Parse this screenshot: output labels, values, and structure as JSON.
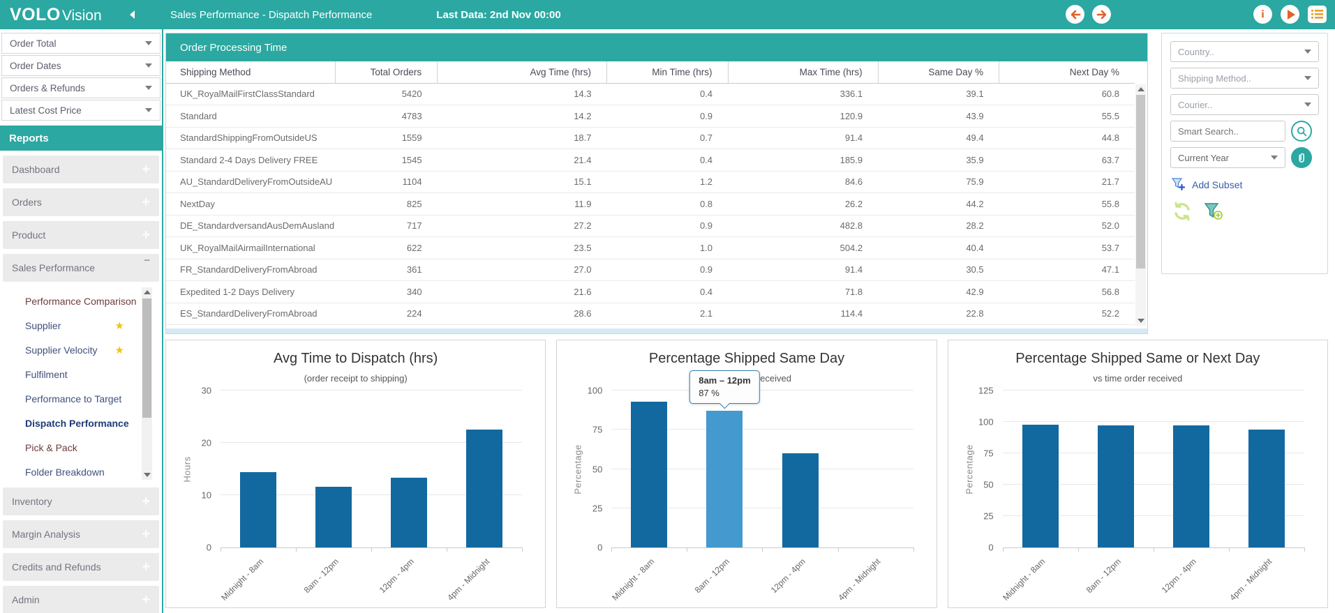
{
  "header": {
    "logo_bold": "VOLO",
    "logo_light": "Vision",
    "title": "Sales Performance - Dispatch Performance",
    "last_data": "Last Data: 2nd Nov 00:00"
  },
  "colors": {
    "accent_teal": "#2aa8a1",
    "accent_orange": "#e2622b",
    "bar_blue": "#1269a0",
    "bar_hover_blue": "#4499ce",
    "panel_border_blue": "#bbd8e8"
  },
  "sidebar": {
    "reports_header": "Reports",
    "filters": [
      {
        "label": "Order Total"
      },
      {
        "label": "Order Dates"
      },
      {
        "label": "Orders & Refunds"
      },
      {
        "label": "Latest Cost Price"
      }
    ],
    "sections": [
      {
        "label": "Dashboard",
        "state": "+"
      },
      {
        "label": "Orders",
        "state": "+"
      },
      {
        "label": "Product",
        "state": "+"
      },
      {
        "label": "Sales Performance",
        "state": "−",
        "expanded": true
      },
      {
        "label": "Inventory",
        "state": "+"
      },
      {
        "label": "Margin Analysis",
        "state": "+"
      },
      {
        "label": "Credits and Refunds",
        "state": "+"
      },
      {
        "label": "Admin",
        "state": "+"
      }
    ],
    "submenu": [
      {
        "label": "Performance Comparison",
        "visited": true
      },
      {
        "label": "Supplier",
        "star": true
      },
      {
        "label": "Supplier Velocity",
        "star": true
      },
      {
        "label": "Fulfilment"
      },
      {
        "label": "Performance to Target"
      },
      {
        "label": "Dispatch Performance",
        "active": true
      },
      {
        "label": "Pick & Pack",
        "visited": true
      },
      {
        "label": "Folder Breakdown"
      }
    ]
  },
  "table": {
    "title": "Order Processing Time",
    "columns": [
      "Shipping Method",
      "Total Orders",
      "Avg Time (hrs)",
      "Min Time (hrs)",
      "Max Time (hrs)",
      "Same Day %",
      "Next Day %"
    ],
    "rows": [
      [
        "UK_RoyalMailFirstClassStandard",
        "5420",
        "14.3",
        "0.4",
        "336.1",
        "39.1",
        "60.8"
      ],
      [
        "Standard",
        "4783",
        "14.2",
        "0.9",
        "120.9",
        "43.9",
        "55.5"
      ],
      [
        "StandardShippingFromOutsideUS",
        "1559",
        "18.7",
        "0.7",
        "91.4",
        "49.4",
        "44.8"
      ],
      [
        "Standard 2-4 Days Delivery FREE",
        "1545",
        "21.4",
        "0.4",
        "185.9",
        "35.9",
        "63.7"
      ],
      [
        "AU_StandardDeliveryFromOutsideAU",
        "1104",
        "15.1",
        "1.2",
        "84.6",
        "75.9",
        "21.7"
      ],
      [
        "NextDay",
        "825",
        "11.9",
        "0.8",
        "26.2",
        "44.2",
        "55.8"
      ],
      [
        "DE_StandardversandAusDemAusland",
        "717",
        "27.2",
        "0.9",
        "482.8",
        "28.2",
        "52.0"
      ],
      [
        "UK_RoyalMailAirmailInternational",
        "622",
        "23.5",
        "1.0",
        "504.2",
        "40.4",
        "53.7"
      ],
      [
        "FR_StandardDeliveryFromAbroad",
        "361",
        "27.0",
        "0.9",
        "91.4",
        "30.5",
        "47.1"
      ],
      [
        "Expedited 1-2 Days Delivery",
        "340",
        "21.6",
        "0.4",
        "71.8",
        "42.9",
        "56.8"
      ],
      [
        "ES_StandardDeliveryFromAbroad",
        "224",
        "28.6",
        "2.1",
        "114.4",
        "22.8",
        "52.2"
      ]
    ]
  },
  "filter_panel": {
    "dropdowns": [
      "Country..",
      "Shipping Method..",
      "Courier.."
    ],
    "search_placeholder": "Smart Search..",
    "period_dropdown": "Current Year",
    "add_subset_label": "Add Subset"
  },
  "chart_data": [
    {
      "type": "bar",
      "title": "Avg Time to Dispatch (hrs)",
      "subtitle": "(order receipt to shipping)",
      "ylabel": "Hours",
      "xlabel": "",
      "categories": [
        "Midnight - 8am",
        "8am - 12pm",
        "12pm - 4pm",
        "4pm - Midnight"
      ],
      "values": [
        14.4,
        11.6,
        13.3,
        22.5
      ],
      "yticks": [
        0,
        10,
        20,
        30
      ],
      "ylim": [
        0,
        30
      ],
      "grid": true,
      "legend": "none"
    },
    {
      "type": "bar",
      "title": "Percentage Shipped Same Day",
      "subtitle": "vs time order received",
      "ylabel": "Percentage",
      "xlabel": "",
      "categories": [
        "Midnight - 8am",
        "8am - 12pm",
        "12pm - 4pm",
        "4pm - Midnight"
      ],
      "values": [
        93,
        87,
        60,
        0
      ],
      "yticks": [
        0,
        25,
        50,
        75,
        100
      ],
      "ylim": [
        0,
        100
      ],
      "grid": true,
      "legend": "none",
      "hover_index": 1,
      "tooltip": {
        "title": "8am – 12pm",
        "value": "87 %"
      }
    },
    {
      "type": "bar",
      "title": "Percentage Shipped Same or Next Day",
      "subtitle": "vs time order received",
      "ylabel": "Percentage",
      "xlabel": "",
      "categories": [
        "Midnight - 8am",
        "8am - 12pm",
        "12pm - 4pm",
        "4pm - Midnight"
      ],
      "values": [
        98,
        97,
        97,
        94
      ],
      "yticks": [
        0,
        25,
        50,
        75,
        100,
        125
      ],
      "ylim": [
        0,
        125
      ],
      "grid": true,
      "legend": "none"
    }
  ]
}
